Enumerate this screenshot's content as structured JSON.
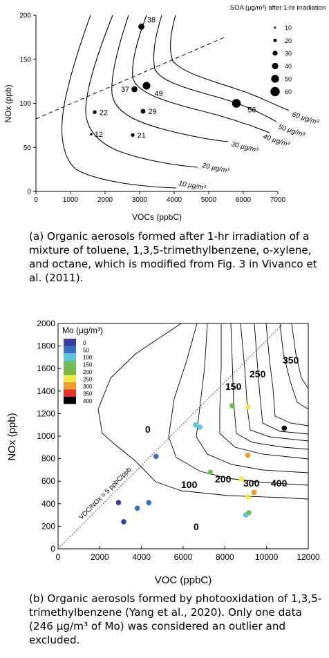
{
  "chart_data": [
    {
      "type": "scatter",
      "title": "",
      "xlabel": "VOCs (ppbC)",
      "ylabel": "NOx (ppb)",
      "xlim": [
        0,
        7000
      ],
      "ylim": [
        0,
        200
      ],
      "xticks": [
        "0",
        "1000",
        "2000",
        "3000",
        "4000",
        "5000",
        "6000",
        "7000"
      ],
      "yticks": [
        "0",
        "50",
        "100",
        "150",
        "200"
      ],
      "legend_title": "SOA (µg/m³) after 1-hr irradiation",
      "legend_entries": [
        "10",
        "20",
        "30",
        "40",
        "50",
        "60"
      ],
      "legend_position": "top-right",
      "points": [
        {
          "x": 3050,
          "y": 187,
          "soa": 38,
          "label": "38"
        },
        {
          "x": 3200,
          "y": 120,
          "soa": 49,
          "label": "49"
        },
        {
          "x": 2850,
          "y": 116,
          "soa": 37,
          "label": "37"
        },
        {
          "x": 5800,
          "y": 100,
          "soa": 56,
          "label": "56"
        },
        {
          "x": 3100,
          "y": 91,
          "soa": 29,
          "label": "29"
        },
        {
          "x": 1700,
          "y": 90,
          "soa": 22,
          "label": "22"
        },
        {
          "x": 2800,
          "y": 64,
          "soa": 21,
          "label": "21"
        },
        {
          "x": 1600,
          "y": 65,
          "soa": 12,
          "label": "12"
        }
      ],
      "isopleth_labels": [
        "60 µg/m³",
        "50 µg/m³",
        "40 µg/m³",
        "30 µg/m³",
        "20 µg/m³",
        "10 µg/m³"
      ],
      "grid": false
    },
    {
      "type": "scatter",
      "title": "",
      "xlabel": "VOC (ppbC)",
      "ylabel": "NOx (ppb)",
      "xlim": [
        0,
        12000
      ],
      "ylim": [
        0,
        2000
      ],
      "xticks": [
        "0",
        "2000",
        "4000",
        "6000",
        "8000",
        "10000",
        "12000"
      ],
      "yticks": [
        "0",
        "200",
        "400",
        "600",
        "800",
        "1000",
        "1200",
        "1400",
        "1600",
        "1800",
        "2000"
      ],
      "legend_title": "Mo (µg/m³)",
      "legend_entries": [
        "0",
        "50",
        "100",
        "150",
        "200",
        "250",
        "300",
        "350",
        "400"
      ],
      "legend_colors": [
        "#3b3f9c",
        "#3a6fc0",
        "#5bc6dc",
        "#71c060",
        "#7ab648",
        "#f2e84a",
        "#f29a30",
        "#e8332b",
        "#000000"
      ],
      "legend_position": "top-left",
      "reference_line_label": "VOC/NOx = 5 ppbC/ppb",
      "contour_labels": [
        "0",
        "0",
        "100",
        "150",
        "200",
        "250",
        "300",
        "350",
        "400"
      ],
      "points": [
        {
          "x": 2900,
          "y": 410,
          "color": "#3b3f9c"
        },
        {
          "x": 3150,
          "y": 240,
          "color": "#3b3f9c"
        },
        {
          "x": 3800,
          "y": 360,
          "color": "#3a6fc0"
        },
        {
          "x": 4350,
          "y": 410,
          "color": "#3a6fc0"
        },
        {
          "x": 4700,
          "y": 820,
          "color": "#3a6fc0"
        },
        {
          "x": 6600,
          "y": 1100,
          "color": "#5bc6dc"
        },
        {
          "x": 6800,
          "y": 1080,
          "color": "#5bc6dc"
        },
        {
          "x": 7300,
          "y": 680,
          "color": "#71c060"
        },
        {
          "x": 8350,
          "y": 1270,
          "color": "#7ab648"
        },
        {
          "x": 9100,
          "y": 1260,
          "color": "#f2e84a"
        },
        {
          "x": 8800,
          "y": 620,
          "color": "#f2e84a"
        },
        {
          "x": 9100,
          "y": 460,
          "color": "#f2e84a"
        },
        {
          "x": 9100,
          "y": 830,
          "color": "#f29a30"
        },
        {
          "x": 9400,
          "y": 500,
          "color": "#f29a30"
        },
        {
          "x": 9000,
          "y": 300,
          "color": "#5bc6dc"
        },
        {
          "x": 9150,
          "y": 320,
          "color": "#71c060"
        },
        {
          "x": 10850,
          "y": 1070,
          "color": "#000000"
        }
      ],
      "grid": false
    }
  ],
  "captions": {
    "a_label": "(a)",
    "a_text": "Organic aerosols formed after 1-hr irradiation of a mixture of toluene, 1,3,5-trimethylbenzene, o-xylene, and octane, which is modified from Fig. 3 in Vivanco et al. (2011).",
    "b_label": "(b)",
    "b_text": "Organic aerosols formed by photooxidation of 1,3,5-trimethylbenzene (Yang et al., 2020). Only one data (246 µg/m³ of Mo) was considered an outlier and excluded."
  }
}
